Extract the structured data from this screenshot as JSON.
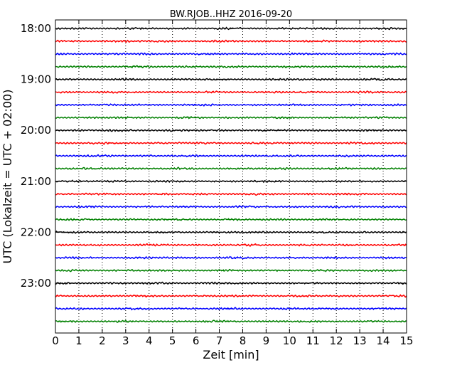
{
  "chart_data": {
    "type": "line",
    "title": "BW.RJOB..HHZ 2016-09-20",
    "xlabel": "Zeit  [min]",
    "ylabel": "UTC (Lokalzeit = UTC + 02:00)",
    "xlim": [
      0,
      15
    ],
    "x_ticks": [
      "0",
      "1",
      "2",
      "3",
      "4",
      "5",
      "6",
      "7",
      "8",
      "9",
      "10",
      "11",
      "12",
      "13",
      "14",
      "15"
    ],
    "y_tick_labels": [
      "18:00",
      "19:00",
      "20:00",
      "21:00",
      "22:00",
      "23:00"
    ],
    "grid": "vertical-dotted",
    "trace_colors": [
      "#000000",
      "#ff0000",
      "#0000ff",
      "#008000"
    ],
    "traces_count": 24,
    "trace_interval_minutes": 15
  }
}
